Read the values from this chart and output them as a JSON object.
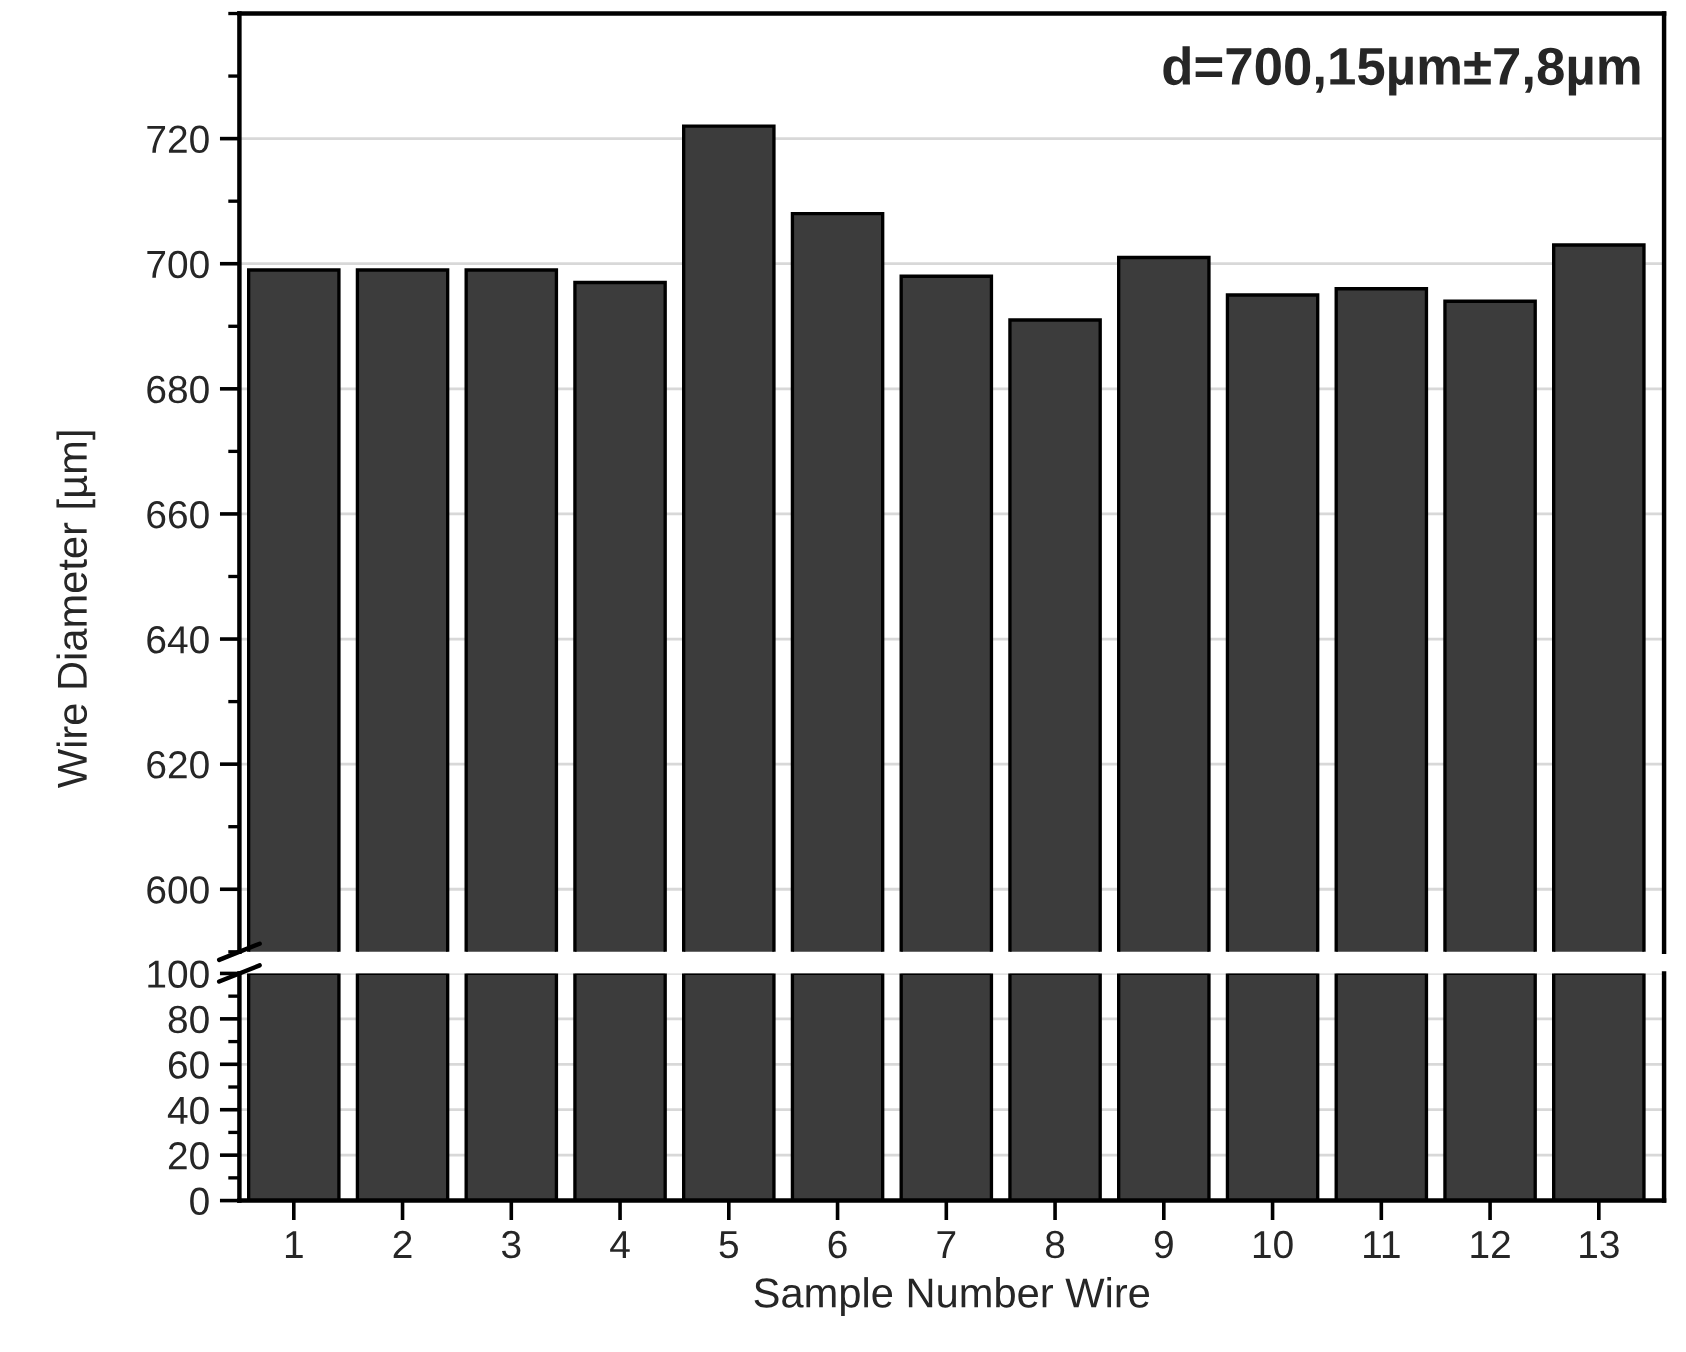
{
  "chart_data": [
    {
      "type": "bar",
      "categories": [
        "1",
        "2",
        "3",
        "4",
        "5",
        "6",
        "7",
        "8",
        "9",
        "10",
        "11",
        "12",
        "13"
      ],
      "values": [
        699,
        699,
        699,
        697,
        722,
        708,
        698,
        691,
        701,
        695,
        696,
        694,
        703
      ],
      "color": "#3c3c3c",
      "ylim": [
        590,
        740
      ],
      "yticks": [
        600,
        620,
        640,
        660,
        680,
        700,
        720
      ],
      "ylabel": "Wire Diameter [µm]",
      "grid": "y",
      "tick_labels": "y",
      "annotations": [
        "d=700,15µm±7,8µm"
      ]
    },
    {
      "type": "bar",
      "categories": [
        "1",
        "2",
        "3",
        "4",
        "5",
        "6",
        "7",
        "8",
        "9",
        "10",
        "11",
        "12",
        "13"
      ],
      "values": [
        100,
        100,
        100,
        100,
        100,
        100,
        100,
        100,
        100,
        100,
        100,
        100,
        100
      ],
      "color": "#3c3c3c",
      "ylim": [
        0,
        100
      ],
      "yticks": [
        0,
        20,
        40,
        60,
        80,
        100
      ],
      "xlabel": "Sample Number Wire",
      "grid": "y"
    }
  ]
}
